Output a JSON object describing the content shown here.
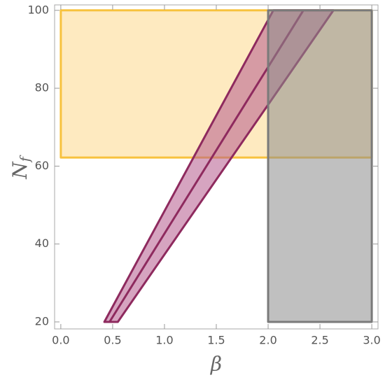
{
  "chart_data": {
    "type": "region",
    "xlabel": "β",
    "ylabel": {
      "text": "N",
      "subscript": "f"
    },
    "xlim": [
      -0.06,
      3.06
    ],
    "ylim": [
      18.2,
      101.4
    ],
    "xticks": [
      {
        "value": 0,
        "label": "0.0"
      },
      {
        "value": 0.5,
        "label": "0.5"
      },
      {
        "value": 1,
        "label": "1.0"
      },
      {
        "value": 1.5,
        "label": "1.5"
      },
      {
        "value": 2,
        "label": "2.0"
      },
      {
        "value": 2.5,
        "label": "2.5"
      },
      {
        "value": 3,
        "label": "3.0"
      }
    ],
    "yticks": [
      20,
      40,
      60,
      80,
      100
    ],
    "series": [
      {
        "color": "#f7c23e",
        "fill": "#fdd98c",
        "x": [
          0,
          3,
          3,
          0
        ],
        "y": [
          62.2,
          62.2,
          100,
          100
        ]
      },
      {
        "color": "#8e2a5e",
        "fill": "#b45a8c",
        "x": [
          0.42,
          2.05,
          2.63,
          0.55
        ],
        "y": [
          20,
          100,
          100,
          20
        ]
      },
      {
        "color": "#8e2a5e",
        "x": [
          0.47,
          2.34
        ],
        "y": [
          20,
          100
        ]
      },
      {
        "color": "#7a7a7a",
        "fill": "#8c8c8c",
        "x": [
          2,
          3,
          3,
          2
        ],
        "y": [
          20,
          20,
          100,
          100
        ]
      }
    ]
  }
}
